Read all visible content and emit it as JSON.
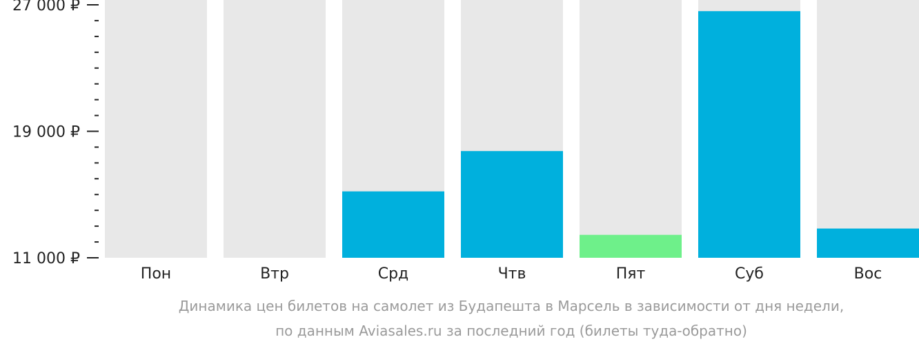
{
  "chart_data": {
    "type": "bar",
    "categories": [
      "Пон",
      "Втр",
      "Срд",
      "Чтв",
      "Пят",
      "Суб",
      "Вос"
    ],
    "values": [
      null,
      null,
      15200,
      17750,
      12450,
      26600,
      12850
    ],
    "highlight": [
      "none",
      "none",
      "normal",
      "normal",
      "min",
      "normal",
      "normal"
    ],
    "ylim": [
      11000,
      27000
    ],
    "y_ticks": [
      {
        "value": 27000,
        "label": "27 000 ₽"
      },
      {
        "value": 19000,
        "label": "19 000 ₽"
      },
      {
        "value": 11000,
        "label": "11 000 ₽"
      }
    ],
    "y_minor_step": 1000,
    "caption": [
      "Динамика цен билетов на самолет из Будапешта в Марсель в зависимости от дня недели,",
      "по данным Aviasales.ru за последний год (билеты туда-обратно)"
    ],
    "colors": {
      "bar": "#00b0dd",
      "bar_min": "#6ef08a",
      "background_column": "#e8e8e8",
      "axis": "#222222",
      "caption": "#9a9a9a"
    }
  }
}
